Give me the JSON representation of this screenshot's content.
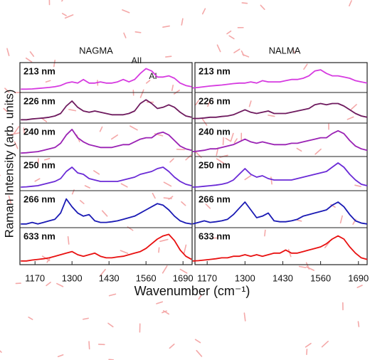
{
  "chart_data": [
    {
      "type": "line",
      "title": "NAGMA",
      "xlabel": "Wavenumber (cm⁻¹)",
      "ylabel": "Raman Intensity (arb. units)",
      "annotations": [
        "AII",
        "AI"
      ],
      "xlim": [
        1117,
        1722
      ],
      "xticks": [
        1170,
        1300,
        1430,
        1560,
        1690
      ],
      "x": [
        1120,
        1140,
        1160,
        1180,
        1200,
        1220,
        1240,
        1260,
        1280,
        1300,
        1320,
        1340,
        1360,
        1380,
        1400,
        1420,
        1440,
        1460,
        1480,
        1500,
        1520,
        1540,
        1560,
        1580,
        1600,
        1620,
        1640,
        1660,
        1680,
        1700,
        1720
      ],
      "series": [
        {
          "name": "213 nm",
          "color": "#d63ae0",
          "values": [
            0.05,
            0.05,
            0.06,
            0.08,
            0.1,
            0.12,
            0.15,
            0.2,
            0.3,
            0.35,
            0.3,
            0.45,
            0.3,
            0.3,
            0.35,
            0.3,
            0.3,
            0.35,
            0.45,
            0.35,
            0.45,
            0.7,
            0.9,
            0.8,
            0.55,
            0.55,
            0.6,
            0.5,
            0.3,
            0.2,
            0.15
          ]
        },
        {
          "name": "226 nm",
          "color": "#6e1a5e",
          "values": [
            0.05,
            0.05,
            0.08,
            0.1,
            0.12,
            0.15,
            0.2,
            0.3,
            0.6,
            0.8,
            0.55,
            0.4,
            0.35,
            0.4,
            0.35,
            0.3,
            0.25,
            0.25,
            0.25,
            0.3,
            0.4,
            0.7,
            0.85,
            0.7,
            0.5,
            0.55,
            0.65,
            0.55,
            0.35,
            0.2,
            0.15
          ]
        },
        {
          "name": "240 nm",
          "color": "#9a22b4",
          "values": [
            0.05,
            0.06,
            0.08,
            0.1,
            0.15,
            0.2,
            0.25,
            0.4,
            0.7,
            0.9,
            0.6,
            0.45,
            0.35,
            0.3,
            0.25,
            0.25,
            0.25,
            0.3,
            0.35,
            0.35,
            0.45,
            0.55,
            0.6,
            0.6,
            0.75,
            0.8,
            0.7,
            0.5,
            0.3,
            0.2,
            0.15
          ]
        },
        {
          "name": "250 nm",
          "color": "#6a2ad6",
          "values": [
            0.05,
            0.06,
            0.08,
            0.1,
            0.15,
            0.2,
            0.25,
            0.35,
            0.6,
            0.75,
            0.55,
            0.5,
            0.35,
            0.3,
            0.25,
            0.25,
            0.25,
            0.25,
            0.3,
            0.35,
            0.4,
            0.5,
            0.55,
            0.6,
            0.7,
            0.75,
            0.6,
            0.4,
            0.25,
            0.15,
            0.1
          ]
        },
        {
          "name": "266 nm",
          "color": "#1a1ab4",
          "values": [
            0.05,
            0.05,
            0.1,
            0.05,
            0.1,
            0.15,
            0.2,
            0.4,
            0.85,
            0.6,
            0.4,
            0.3,
            0.35,
            0.15,
            0.1,
            0.1,
            0.12,
            0.15,
            0.2,
            0.25,
            0.3,
            0.4,
            0.5,
            0.6,
            0.7,
            0.65,
            0.5,
            0.3,
            0.15,
            0.08,
            0.05
          ]
        },
        {
          "name": "633 nm",
          "color": "#e81010",
          "values": [
            0.05,
            0.05,
            0.08,
            0.1,
            0.12,
            0.15,
            0.2,
            0.25,
            0.3,
            0.35,
            0.25,
            0.2,
            0.25,
            0.3,
            0.2,
            0.15,
            0.15,
            0.18,
            0.2,
            0.25,
            0.3,
            0.35,
            0.45,
            0.6,
            0.75,
            0.85,
            0.9,
            0.7,
            0.4,
            0.2,
            0.1
          ]
        }
      ]
    },
    {
      "type": "line",
      "title": "NALMA",
      "xlim": [
        1128,
        1720
      ],
      "xticks": [
        1170,
        1300,
        1430,
        1560,
        1690
      ],
      "x": [
        1120,
        1140,
        1160,
        1180,
        1200,
        1220,
        1240,
        1260,
        1280,
        1300,
        1320,
        1340,
        1360,
        1380,
        1400,
        1420,
        1440,
        1460,
        1480,
        1500,
        1520,
        1540,
        1560,
        1580,
        1600,
        1620,
        1640,
        1660,
        1680,
        1700,
        1720
      ],
      "series": [
        {
          "name": "213 nm",
          "color": "#d63ae0",
          "values": [
            0.1,
            0.12,
            0.15,
            0.18,
            0.2,
            0.22,
            0.25,
            0.28,
            0.3,
            0.3,
            0.35,
            0.3,
            0.4,
            0.35,
            0.35,
            0.35,
            0.4,
            0.45,
            0.45,
            0.5,
            0.6,
            0.8,
            0.85,
            0.7,
            0.6,
            0.6,
            0.55,
            0.5,
            0.4,
            0.35,
            0.3
          ]
        },
        {
          "name": "226 nm",
          "color": "#6e1a5e",
          "values": [
            0.1,
            0.1,
            0.12,
            0.15,
            0.15,
            0.18,
            0.2,
            0.25,
            0.35,
            0.45,
            0.35,
            0.3,
            0.35,
            0.4,
            0.3,
            0.3,
            0.3,
            0.35,
            0.4,
            0.45,
            0.5,
            0.65,
            0.7,
            0.65,
            0.7,
            0.7,
            0.6,
            0.45,
            0.3,
            0.2,
            0.15
          ]
        },
        {
          "name": "240 nm",
          "color": "#9a22b4",
          "values": [
            0.1,
            0.12,
            0.15,
            0.2,
            0.2,
            0.25,
            0.3,
            0.35,
            0.45,
            0.55,
            0.45,
            0.4,
            0.45,
            0.4,
            0.35,
            0.35,
            0.35,
            0.4,
            0.4,
            0.45,
            0.5,
            0.55,
            0.6,
            0.6,
            0.75,
            0.85,
            0.75,
            0.5,
            0.3,
            0.2,
            0.15
          ]
        },
        {
          "name": "250 nm",
          "color": "#6a2ad6",
          "values": [
            0.05,
            0.06,
            0.08,
            0.1,
            0.12,
            0.15,
            0.2,
            0.3,
            0.5,
            0.7,
            0.5,
            0.4,
            0.45,
            0.35,
            0.3,
            0.3,
            0.3,
            0.3,
            0.35,
            0.4,
            0.45,
            0.5,
            0.55,
            0.6,
            0.75,
            0.9,
            0.75,
            0.5,
            0.3,
            0.15,
            0.1
          ]
        },
        {
          "name": "266 nm",
          "color": "#1a1ab4",
          "values": [
            0.05,
            0.1,
            0.15,
            0.1,
            0.12,
            0.15,
            0.2,
            0.35,
            0.55,
            0.75,
            0.5,
            0.25,
            0.3,
            0.4,
            0.15,
            0.12,
            0.12,
            0.15,
            0.2,
            0.3,
            0.35,
            0.4,
            0.45,
            0.5,
            0.65,
            0.75,
            0.6,
            0.35,
            0.15,
            0.08,
            0.05
          ]
        },
        {
          "name": "633 nm",
          "color": "#e81010",
          "values": [
            0.05,
            0.06,
            0.08,
            0.1,
            0.12,
            0.15,
            0.15,
            0.2,
            0.2,
            0.25,
            0.2,
            0.25,
            0.2,
            0.25,
            0.3,
            0.3,
            0.4,
            0.3,
            0.3,
            0.35,
            0.4,
            0.45,
            0.5,
            0.6,
            0.75,
            0.85,
            0.75,
            0.5,
            0.3,
            0.15,
            0.1
          ]
        }
      ]
    }
  ]
}
